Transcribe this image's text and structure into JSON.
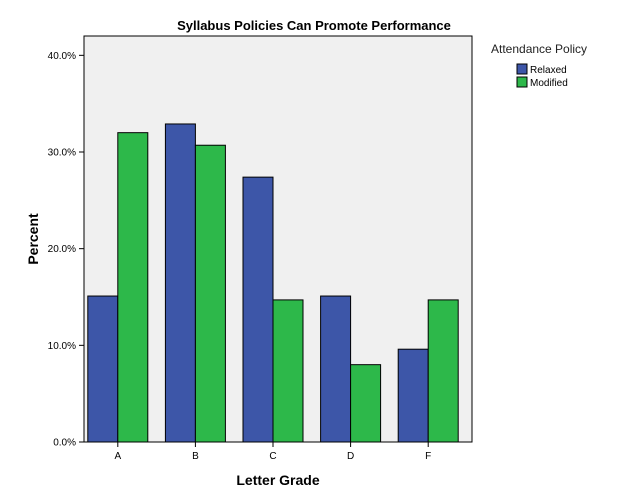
{
  "chart_data": {
    "type": "bar",
    "title": "Syllabus Policies Can Promote Performance",
    "xlabel": "Letter Grade",
    "ylabel": "Percent",
    "categories": [
      "A",
      "B",
      "C",
      "D",
      "F"
    ],
    "series": [
      {
        "name": "Relaxed",
        "values": [
          15.1,
          32.9,
          27.4,
          15.1,
          9.6
        ],
        "color": "#3d56a8"
      },
      {
        "name": "Modified",
        "values": [
          32.0,
          30.7,
          14.7,
          8.0,
          14.7
        ],
        "color": "#2db84a"
      }
    ],
    "ylim": [
      0,
      42
    ],
    "yticks": [
      0,
      10,
      20,
      30,
      40
    ],
    "ytick_labels": [
      "0.0%",
      "10.0%",
      "20.0%",
      "30.0%",
      "40.0%"
    ],
    "legend": {
      "title": "Attendance Policy",
      "position": "right"
    },
    "plot_background": "#f0f0f0",
    "grid": false
  }
}
